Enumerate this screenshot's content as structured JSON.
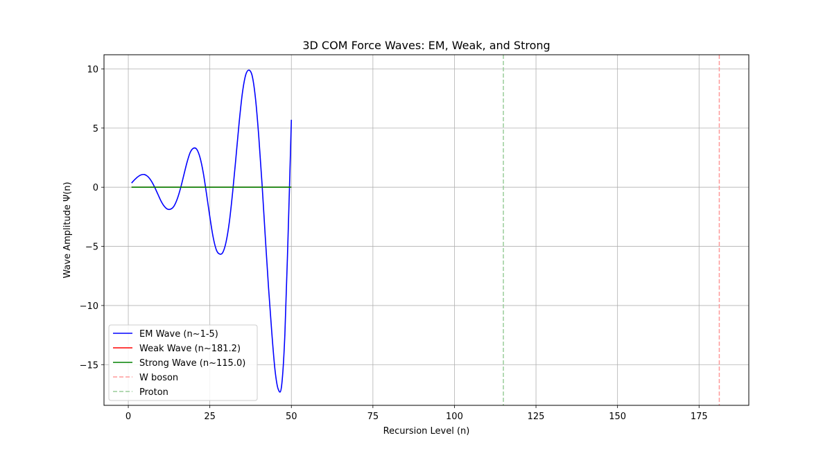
{
  "chart_data": {
    "type": "line",
    "title": "3D COM Force Waves: EM, Weak, and Strong",
    "xlabel": "Recursion Level (n)",
    "ylabel": "Wave Amplitude Ψ(n)",
    "xlim": [
      -7.45,
      190.25
    ],
    "ylim": [
      -18.44,
      11.2
    ],
    "xticks": [
      0,
      25,
      50,
      75,
      100,
      125,
      150,
      175
    ],
    "xtick_labels": [
      "0",
      "25",
      "50",
      "75",
      "100",
      "125",
      "150",
      "175"
    ],
    "yticks": [
      -15,
      -10,
      -5,
      0,
      5,
      10
    ],
    "ytick_labels": [
      "−15",
      "−10",
      "−5",
      "0",
      "5",
      "10"
    ],
    "grid": true,
    "legend_position": "lower-left",
    "series": [
      {
        "name": "EM Wave (n~1-5)",
        "color": "#0000ff",
        "style": "solid",
        "x": [
          1,
          2,
          3,
          4,
          5,
          6,
          7,
          8,
          9,
          10,
          11,
          12,
          13,
          14,
          15,
          16,
          17,
          18,
          19,
          20,
          21,
          22,
          23,
          24,
          25,
          26,
          27,
          28,
          29,
          30,
          31,
          32,
          33,
          34,
          35,
          36,
          37,
          38,
          39,
          40,
          41,
          42,
          43,
          44,
          45,
          46,
          47,
          48,
          49,
          50
        ],
        "y": [
          0.35,
          0.65,
          0.9,
          1.05,
          1.07,
          0.9,
          0.55,
          0.05,
          -0.55,
          -1.15,
          -1.6,
          -1.85,
          -1.85,
          -1.6,
          -1.0,
          -0.1,
          1.0,
          2.1,
          2.95,
          3.3,
          3.2,
          2.5,
          1.2,
          -0.6,
          -2.5,
          -4.2,
          -5.3,
          -5.65,
          -5.5,
          -4.6,
          -2.9,
          -0.4,
          2.5,
          5.5,
          8.0,
          9.5,
          9.9,
          9.4,
          7.5,
          4.3,
          0.3,
          -4.2,
          -8.5,
          -12.3,
          -15.5,
          -17.1,
          -16.8,
          -12.5,
          -4.0,
          5.7
        ]
      },
      {
        "name": "Weak Wave (n~181.2)",
        "color": "#ff0000",
        "style": "solid",
        "x": [
          1,
          50
        ],
        "y": [
          0,
          0
        ]
      },
      {
        "name": "Strong Wave (n~115.0)",
        "color": "#008000",
        "style": "solid",
        "x": [
          1,
          50
        ],
        "y": [
          0,
          0
        ]
      }
    ],
    "vlines": [
      {
        "name": "W boson",
        "x": 181.2,
        "color": "#ff9999",
        "style": "dashed"
      },
      {
        "name": "Proton",
        "x": 115.0,
        "color": "#99cc99",
        "style": "dashed"
      }
    ]
  }
}
